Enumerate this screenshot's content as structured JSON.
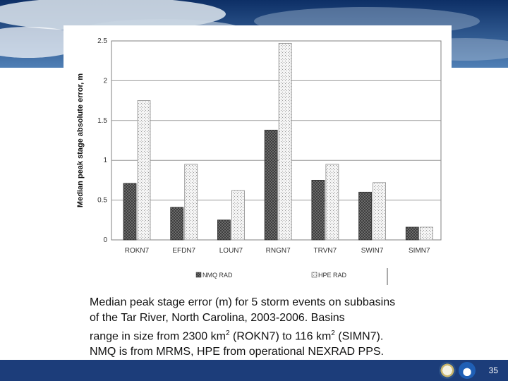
{
  "chart_data": {
    "type": "bar",
    "ylabel": "Median peak stage absolute error, m",
    "xlabel": "",
    "ylim": [
      0,
      2.5
    ],
    "yticks": [
      "2.5",
      "2",
      "1.5",
      "1",
      "0.5",
      "0"
    ],
    "grid": true,
    "legend_position": "bottom",
    "categories": [
      "ROKN7",
      "EFDN7",
      "LOUN7",
      "RNGN7",
      "TRVN7",
      "SWIN7",
      "SIMN7"
    ],
    "series": [
      {
        "name": "NMQ RAD",
        "values": [
          0.71,
          0.41,
          0.25,
          1.38,
          0.75,
          0.6,
          0.16
        ],
        "color": "#6b6b6b"
      },
      {
        "name": "HPE RAD",
        "values": [
          1.75,
          0.95,
          0.62,
          2.47,
          0.95,
          0.72,
          0.16
        ],
        "color": "#e6e6e6"
      }
    ]
  },
  "caption": {
    "line1": "Median peak stage error (m) for 5 storm events on subbasins",
    "line2": "of the Tar River, North Carolina, 2003-2006.  Basins",
    "line3_a": "range in size from 2300 km",
    "line3_sup1": "2",
    "line3_b": " (ROKN7) to 116 km",
    "line3_sup2": "2",
    "line3_c": " (SIMN7).",
    "line4": "NMQ is from MRMS, HPE from operational NEXRAD PPS."
  },
  "footer": {
    "page_number": "35",
    "logos": [
      "doc-seal-icon",
      "noaa-logo-icon"
    ]
  }
}
